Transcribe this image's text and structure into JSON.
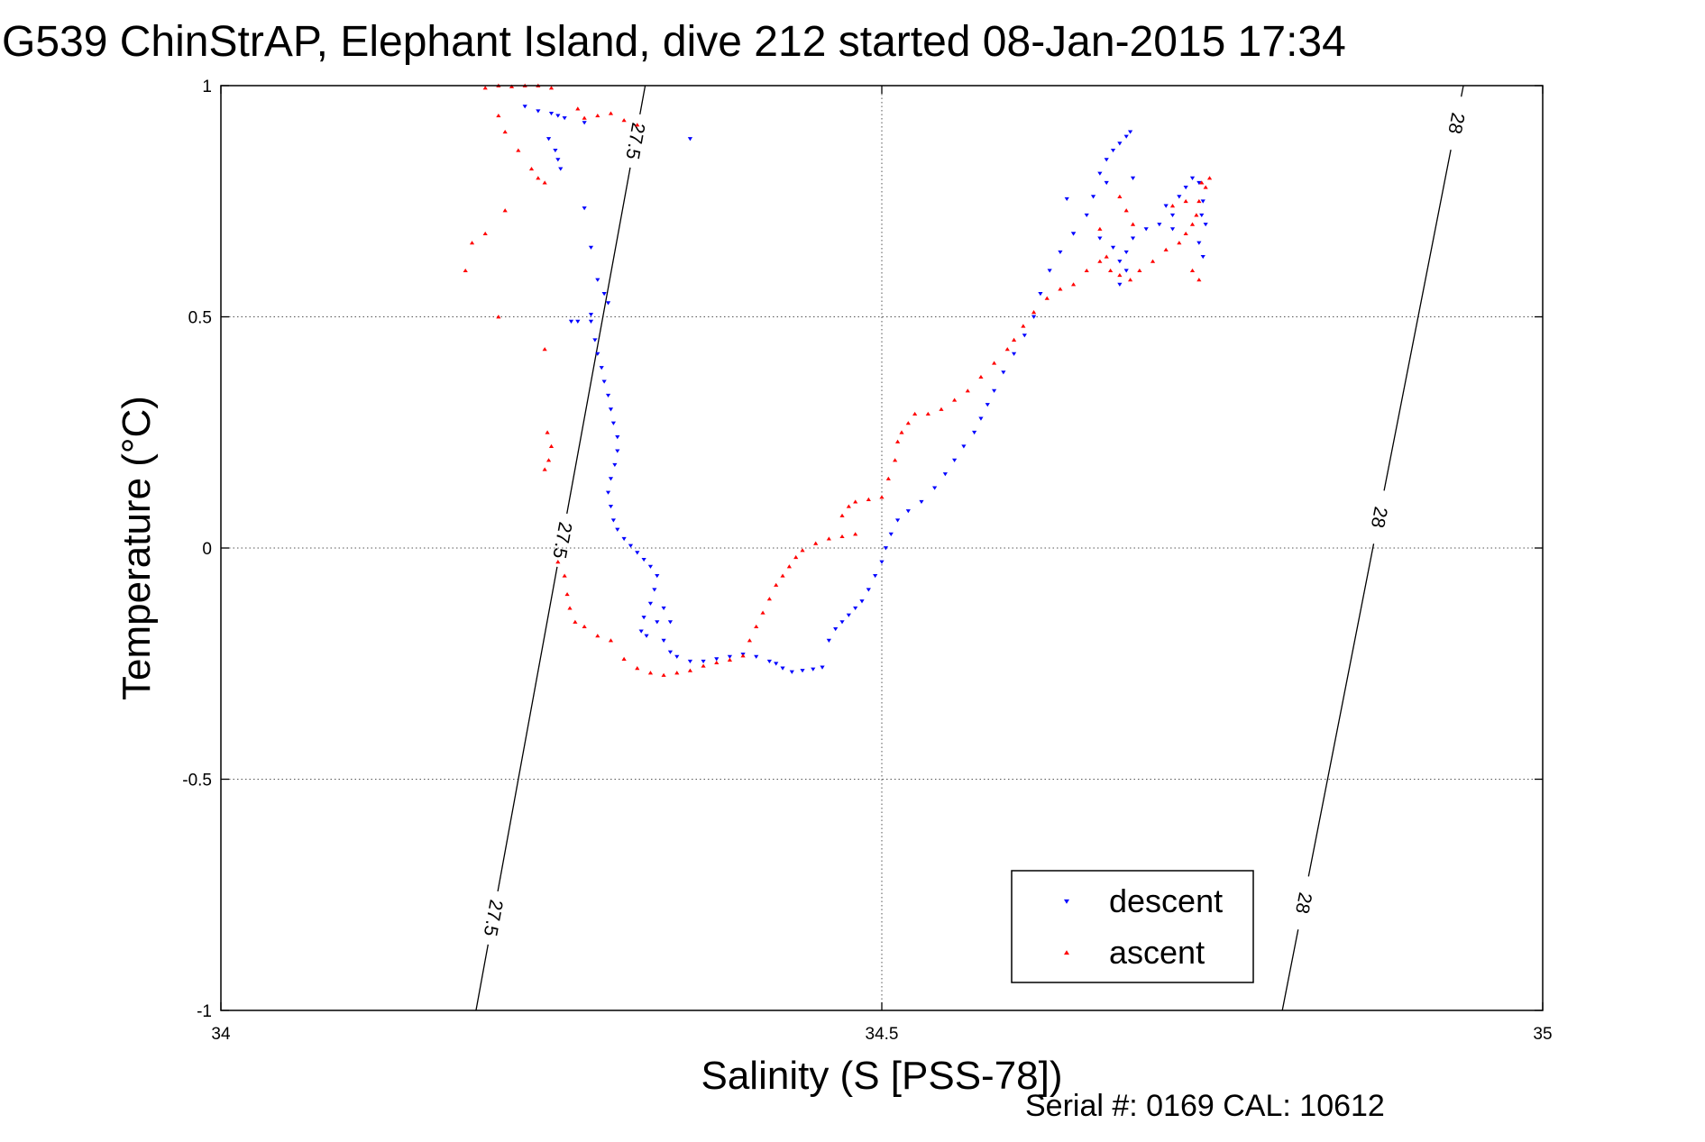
{
  "chart_data": {
    "type": "scatter",
    "title": "G539 ChinStrAP, Elephant Island, dive 212 started 08-Jan-2015 17:34",
    "xlabel": "Salinity (S [PSS-78])",
    "ylabel": "Temperature (°C)",
    "xlim": [
      34,
      35
    ],
    "ylim": [
      -1,
      1
    ],
    "x_ticks": [
      "34",
      "34.5",
      "35"
    ],
    "y_ticks": [
      "1",
      "0.5",
      "0",
      "-0.5",
      "-1"
    ],
    "grid": true,
    "legend_position": "bottom-right",
    "footer": "Serial #: 0169 CAL: 10612",
    "contours": [
      {
        "label": "27.5",
        "points": [
          [
            34.193,
            -1.0
          ],
          [
            34.321,
            1.0
          ]
        ],
        "label_at": [
          [
            34.206,
            -0.8
          ],
          [
            34.252,
            0.02
          ],
          [
            34.314,
            0.88
          ]
        ]
      },
      {
        "label": "28",
        "points": [
          [
            34.803,
            -1.0
          ],
          [
            34.94,
            1.0
          ]
        ],
        "label_at": [
          [
            34.823,
            -0.77
          ],
          [
            34.87,
            0.07
          ],
          [
            34.932,
            0.92
          ]
        ]
      }
    ],
    "series": [
      {
        "name": "descent",
        "color": "#0000ff",
        "marker": "triangle-down",
        "points": [
          [
            34.23,
            0.955
          ],
          [
            34.24,
            0.945
          ],
          [
            34.25,
            0.94
          ],
          [
            34.255,
            0.935
          ],
          [
            34.26,
            0.93
          ],
          [
            34.275,
            0.92
          ],
          [
            34.248,
            0.885
          ],
          [
            34.253,
            0.86
          ],
          [
            34.255,
            0.84
          ],
          [
            34.257,
            0.82
          ],
          [
            34.355,
            0.885
          ],
          [
            34.275,
            0.735
          ],
          [
            34.28,
            0.65
          ],
          [
            34.285,
            0.58
          ],
          [
            34.29,
            0.55
          ],
          [
            34.293,
            0.53
          ],
          [
            34.28,
            0.505
          ],
          [
            34.265,
            0.49
          ],
          [
            34.27,
            0.49
          ],
          [
            34.28,
            0.49
          ],
          [
            34.283,
            0.45
          ],
          [
            34.285,
            0.42
          ],
          [
            34.288,
            0.39
          ],
          [
            34.29,
            0.36
          ],
          [
            34.293,
            0.33
          ],
          [
            34.295,
            0.3
          ],
          [
            34.297,
            0.27
          ],
          [
            34.3,
            0.24
          ],
          [
            34.3,
            0.21
          ],
          [
            34.298,
            0.18
          ],
          [
            34.295,
            0.15
          ],
          [
            34.293,
            0.12
          ],
          [
            34.295,
            0.09
          ],
          [
            34.297,
            0.06
          ],
          [
            34.3,
            0.04
          ],
          [
            34.305,
            0.02
          ],
          [
            34.31,
            0.005
          ],
          [
            34.315,
            -0.01
          ],
          [
            34.32,
            -0.025
          ],
          [
            34.325,
            -0.04
          ],
          [
            34.33,
            -0.06
          ],
          [
            34.328,
            -0.09
          ],
          [
            34.325,
            -0.12
          ],
          [
            34.32,
            -0.15
          ],
          [
            34.318,
            -0.18
          ],
          [
            34.322,
            -0.19
          ],
          [
            34.33,
            -0.16
          ],
          [
            34.335,
            -0.13
          ],
          [
            34.34,
            -0.16
          ],
          [
            34.335,
            -0.2
          ],
          [
            34.34,
            -0.225
          ],
          [
            34.345,
            -0.235
          ],
          [
            34.355,
            -0.245
          ],
          [
            34.365,
            -0.245
          ],
          [
            34.375,
            -0.24
          ],
          [
            34.385,
            -0.235
          ],
          [
            34.395,
            -0.23
          ],
          [
            34.405,
            -0.235
          ],
          [
            34.415,
            -0.245
          ],
          [
            34.42,
            -0.25
          ],
          [
            34.425,
            -0.26
          ],
          [
            34.432,
            -0.268
          ],
          [
            34.44,
            -0.265
          ],
          [
            34.448,
            -0.262
          ],
          [
            34.455,
            -0.258
          ],
          [
            34.46,
            -0.2
          ],
          [
            34.465,
            -0.175
          ],
          [
            34.47,
            -0.16
          ],
          [
            34.475,
            -0.145
          ],
          [
            34.48,
            -0.13
          ],
          [
            34.485,
            -0.115
          ],
          [
            34.49,
            -0.09
          ],
          [
            34.495,
            -0.06
          ],
          [
            34.5,
            -0.03
          ],
          [
            34.503,
            0.0
          ],
          [
            34.507,
            0.03
          ],
          [
            34.512,
            0.06
          ],
          [
            34.52,
            0.08
          ],
          [
            34.53,
            0.1
          ],
          [
            34.54,
            0.13
          ],
          [
            34.548,
            0.16
          ],
          [
            34.555,
            0.19
          ],
          [
            34.562,
            0.22
          ],
          [
            34.57,
            0.25
          ],
          [
            34.575,
            0.28
          ],
          [
            34.58,
            0.31
          ],
          [
            34.585,
            0.34
          ],
          [
            34.592,
            0.38
          ],
          [
            34.6,
            0.42
          ],
          [
            34.608,
            0.46
          ],
          [
            34.615,
            0.5
          ],
          [
            34.62,
            0.55
          ],
          [
            34.627,
            0.6
          ],
          [
            34.635,
            0.64
          ],
          [
            34.645,
            0.68
          ],
          [
            34.655,
            0.72
          ],
          [
            34.64,
            0.755
          ],
          [
            34.645,
            0.68
          ],
          [
            34.665,
            0.67
          ],
          [
            34.675,
            0.65
          ],
          [
            34.68,
            0.62
          ],
          [
            34.685,
            0.6
          ],
          [
            34.68,
            0.57
          ],
          [
            34.685,
            0.64
          ],
          [
            34.69,
            0.67
          ],
          [
            34.7,
            0.69
          ],
          [
            34.71,
            0.7
          ],
          [
            34.72,
            0.72
          ],
          [
            34.715,
            0.74
          ],
          [
            34.725,
            0.76
          ],
          [
            34.73,
            0.78
          ],
          [
            34.735,
            0.8
          ],
          [
            34.74,
            0.79
          ],
          [
            34.743,
            0.75
          ],
          [
            34.742,
            0.72
          ],
          [
            34.745,
            0.7
          ],
          [
            34.74,
            0.66
          ],
          [
            34.743,
            0.63
          ],
          [
            34.665,
            0.81
          ],
          [
            34.67,
            0.84
          ],
          [
            34.675,
            0.86
          ],
          [
            34.68,
            0.875
          ],
          [
            34.685,
            0.89
          ],
          [
            34.688,
            0.9
          ],
          [
            34.67,
            0.79
          ],
          [
            34.66,
            0.76
          ],
          [
            34.69,
            0.8
          ],
          [
            34.72,
            0.69
          ]
        ]
      },
      {
        "name": "ascent",
        "color": "#ff0000",
        "marker": "triangle-up",
        "points": [
          [
            34.2,
            0.995
          ],
          [
            34.21,
            1.0
          ],
          [
            34.22,
            0.998
          ],
          [
            34.23,
            1.0
          ],
          [
            34.24,
            1.0
          ],
          [
            34.25,
            0.995
          ],
          [
            34.27,
            0.95
          ],
          [
            34.275,
            0.93
          ],
          [
            34.285,
            0.935
          ],
          [
            34.295,
            0.94
          ],
          [
            34.305,
            0.925
          ],
          [
            34.315,
            0.915
          ],
          [
            34.21,
            0.935
          ],
          [
            34.215,
            0.9
          ],
          [
            34.225,
            0.86
          ],
          [
            34.235,
            0.82
          ],
          [
            34.24,
            0.8
          ],
          [
            34.245,
            0.79
          ],
          [
            34.215,
            0.73
          ],
          [
            34.2,
            0.68
          ],
          [
            34.19,
            0.66
          ],
          [
            34.185,
            0.6
          ],
          [
            34.21,
            0.5
          ],
          [
            34.245,
            0.43
          ],
          [
            34.247,
            0.25
          ],
          [
            34.25,
            0.22
          ],
          [
            34.248,
            0.19
          ],
          [
            34.245,
            0.17
          ],
          [
            34.255,
            -0.03
          ],
          [
            34.26,
            -0.06
          ],
          [
            34.262,
            -0.1
          ],
          [
            34.264,
            -0.13
          ],
          [
            34.268,
            -0.16
          ],
          [
            34.275,
            -0.17
          ],
          [
            34.285,
            -0.19
          ],
          [
            34.295,
            -0.2
          ],
          [
            34.305,
            -0.24
          ],
          [
            34.315,
            -0.26
          ],
          [
            34.325,
            -0.27
          ],
          [
            34.335,
            -0.275
          ],
          [
            34.345,
            -0.27
          ],
          [
            34.355,
            -0.265
          ],
          [
            34.365,
            -0.255
          ],
          [
            34.375,
            -0.248
          ],
          [
            34.385,
            -0.242
          ],
          [
            34.395,
            -0.233
          ],
          [
            34.4,
            -0.2
          ],
          [
            34.405,
            -0.17
          ],
          [
            34.41,
            -0.14
          ],
          [
            34.415,
            -0.11
          ],
          [
            34.42,
            -0.08
          ],
          [
            34.425,
            -0.06
          ],
          [
            34.43,
            -0.04
          ],
          [
            34.435,
            -0.02
          ],
          [
            34.44,
            -0.005
          ],
          [
            34.45,
            0.01
          ],
          [
            34.46,
            0.02
          ],
          [
            34.47,
            0.025
          ],
          [
            34.48,
            0.03
          ],
          [
            34.47,
            0.07
          ],
          [
            34.475,
            0.09
          ],
          [
            34.48,
            0.1
          ],
          [
            34.49,
            0.105
          ],
          [
            34.5,
            0.11
          ],
          [
            34.505,
            0.15
          ],
          [
            34.51,
            0.19
          ],
          [
            34.512,
            0.23
          ],
          [
            34.515,
            0.25
          ],
          [
            34.52,
            0.27
          ],
          [
            34.525,
            0.29
          ],
          [
            34.535,
            0.29
          ],
          [
            34.545,
            0.3
          ],
          [
            34.555,
            0.32
          ],
          [
            34.565,
            0.34
          ],
          [
            34.575,
            0.37
          ],
          [
            34.585,
            0.4
          ],
          [
            34.595,
            0.43
          ],
          [
            34.6,
            0.45
          ],
          [
            34.607,
            0.48
          ],
          [
            34.615,
            0.51
          ],
          [
            34.625,
            0.54
          ],
          [
            34.635,
            0.56
          ],
          [
            34.645,
            0.57
          ],
          [
            34.655,
            0.6
          ],
          [
            34.665,
            0.62
          ],
          [
            34.673,
            0.6
          ],
          [
            34.68,
            0.59
          ],
          [
            34.688,
            0.58
          ],
          [
            34.695,
            0.6
          ],
          [
            34.705,
            0.62
          ],
          [
            34.715,
            0.645
          ],
          [
            34.725,
            0.66
          ],
          [
            34.73,
            0.68
          ],
          [
            34.735,
            0.7
          ],
          [
            34.738,
            0.72
          ],
          [
            34.74,
            0.75
          ],
          [
            34.745,
            0.78
          ],
          [
            34.748,
            0.8
          ],
          [
            34.735,
            0.6
          ],
          [
            34.74,
            0.58
          ],
          [
            34.69,
            0.7
          ],
          [
            34.685,
            0.73
          ],
          [
            34.68,
            0.76
          ],
          [
            34.665,
            0.69
          ],
          [
            34.67,
            0.63
          ],
          [
            34.72,
            0.74
          ],
          [
            34.73,
            0.75
          ],
          [
            34.742,
            0.79
          ]
        ]
      }
    ]
  }
}
